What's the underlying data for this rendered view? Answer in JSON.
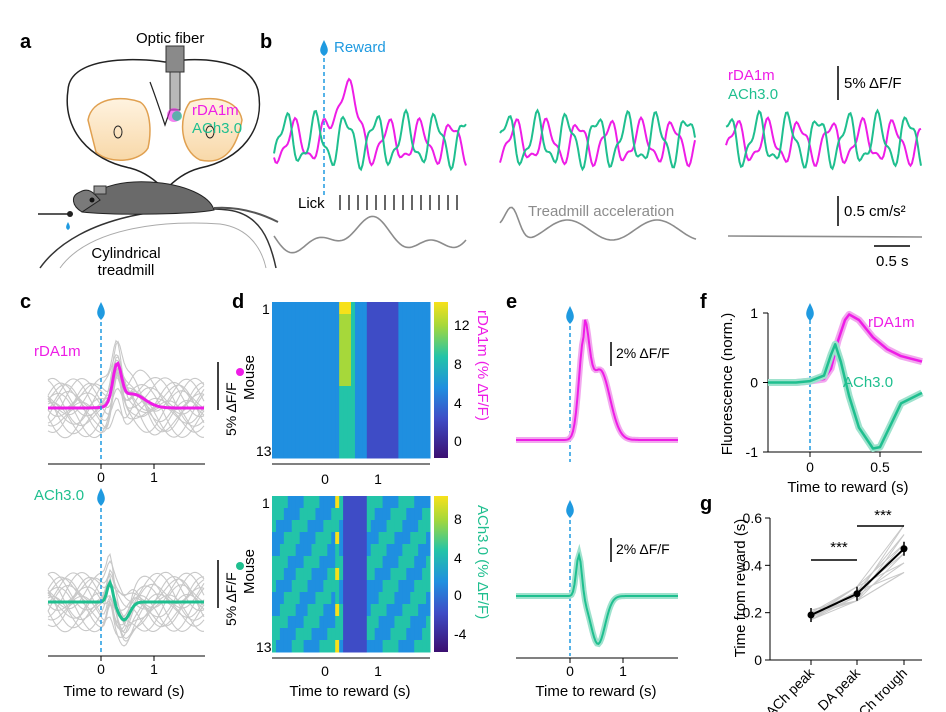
{
  "panels": {
    "a": "a",
    "b": "b",
    "c": "c",
    "d": "d",
    "e": "e",
    "f": "f",
    "g": "g"
  },
  "colors": {
    "rda1m": "#ee1de6",
    "ach": "#1fbf8f",
    "reward": "#1f9ae0",
    "grey": "#8c8c8c",
    "light": "#c8c8c8"
  },
  "panel_a": {
    "optic_fiber": "Optic fiber",
    "sensor1": "rDA1m",
    "sensor2": "ACh3.0",
    "treadmill": "Cylindrical\ntreadmill"
  },
  "panel_b": {
    "reward": "Reward",
    "lick": "Lick",
    "treadmill_accel": "Treadmill acceleration",
    "legend1": "rDA1m",
    "legend2": "ACh3.0",
    "scale_df": "5% ΔF/F",
    "scale_accel": "0.5 cm/s²",
    "scale_time": "0.5 s"
  },
  "panel_c": {
    "sensor1": "rDA1m",
    "sensor2": "ACh3.0",
    "scale": "5% ΔF/F",
    "xlabel": "Time to reward (s)",
    "xticks": [
      "0",
      "1"
    ]
  },
  "panel_d": {
    "ylabel": "Mouse",
    "yticks": [
      "1",
      "13"
    ],
    "xlabel": "Time to reward (s)",
    "xticks": [
      "0",
      "1"
    ],
    "cbar1_label": "rDA1m (% ΔF/F)",
    "cbar1_ticks": [
      "12",
      "8",
      "4",
      "0"
    ],
    "cbar2_label": "ACh3.0 (% ΔF/F)",
    "cbar2_ticks": [
      "8",
      "4",
      "0",
      "-4"
    ]
  },
  "panel_e": {
    "scale1": "2% ΔF/F",
    "scale2": "2% ΔF/F",
    "xlabel": "Time to reward (s)",
    "xticks": [
      "0",
      "1"
    ]
  },
  "panel_f": {
    "ylabel": "Fluorescence (norm.)",
    "xlabel": "Time to reward (s)",
    "yticks": [
      "1",
      "0",
      "-1"
    ],
    "xticks": [
      "0",
      "0.5"
    ],
    "series1": "rDA1m",
    "series2": "ACh3.0"
  },
  "panel_g": {
    "ylabel": "Time from reward (s)",
    "yticks": [
      "0.6",
      "0.4",
      "0.2",
      "0"
    ],
    "sig1": "***",
    "sig2": "***"
  },
  "chart_data": [
    {
      "type": "line",
      "panel": "f",
      "xlabel": "Time to reward (s)",
      "ylabel": "Fluorescence (norm.)",
      "xlim": [
        -0.3,
        0.8
      ],
      "ylim": [
        -1,
        1
      ],
      "series": [
        {
          "name": "rDA1m",
          "x": [
            -0.3,
            -0.1,
            0.0,
            0.1,
            0.15,
            0.2,
            0.25,
            0.28,
            0.35,
            0.45,
            0.55,
            0.65,
            0.8
          ],
          "values": [
            0.0,
            0.0,
            0.02,
            0.05,
            0.2,
            0.6,
            0.9,
            0.98,
            0.9,
            0.65,
            0.48,
            0.38,
            0.3
          ]
        },
        {
          "name": "ACh3.0",
          "x": [
            -0.3,
            -0.1,
            0.0,
            0.1,
            0.15,
            0.18,
            0.22,
            0.28,
            0.35,
            0.45,
            0.5,
            0.55,
            0.65,
            0.8
          ],
          "values": [
            0.0,
            0.0,
            0.02,
            0.1,
            0.4,
            0.55,
            0.3,
            -0.2,
            -0.65,
            -0.95,
            -0.93,
            -0.72,
            -0.3,
            -0.15
          ]
        }
      ]
    },
    {
      "type": "scatter",
      "panel": "g",
      "ylabel": "Time from reward (s)",
      "categories": [
        "ACh peak",
        "DA peak",
        "ACh trough"
      ],
      "values": [
        0.19,
        0.28,
        0.47
      ],
      "ylim": [
        0,
        0.6
      ]
    }
  ]
}
